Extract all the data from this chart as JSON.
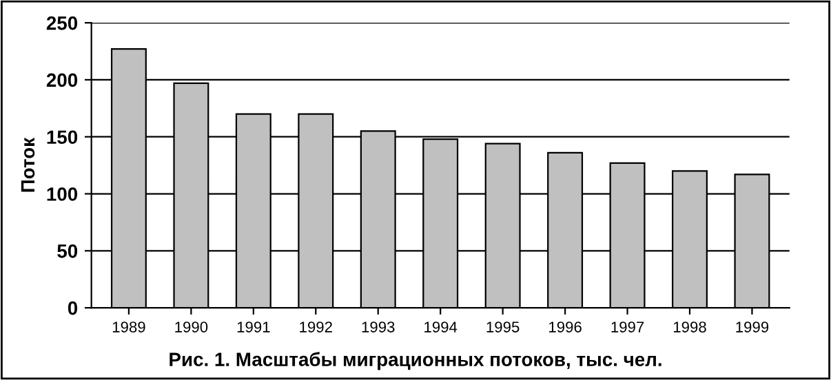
{
  "chart_data": {
    "type": "bar",
    "ylabel": "Поток",
    "categories": [
      "1989",
      "1990",
      "1991",
      "1992",
      "1993",
      "1994",
      "1995",
      "1996",
      "1997",
      "1998",
      "1999"
    ],
    "values": [
      227,
      197,
      170,
      170,
      155,
      148,
      144,
      136,
      127,
      120,
      117
    ],
    "color": "#c0c0c0",
    "ylim": [
      0,
      250
    ],
    "yticks": [
      0,
      50,
      100,
      150,
      200,
      250
    ],
    "grid": "y",
    "annotations": [
      "Рис. 1. Масштабы миграционных потоков, тыс. чел."
    ]
  }
}
